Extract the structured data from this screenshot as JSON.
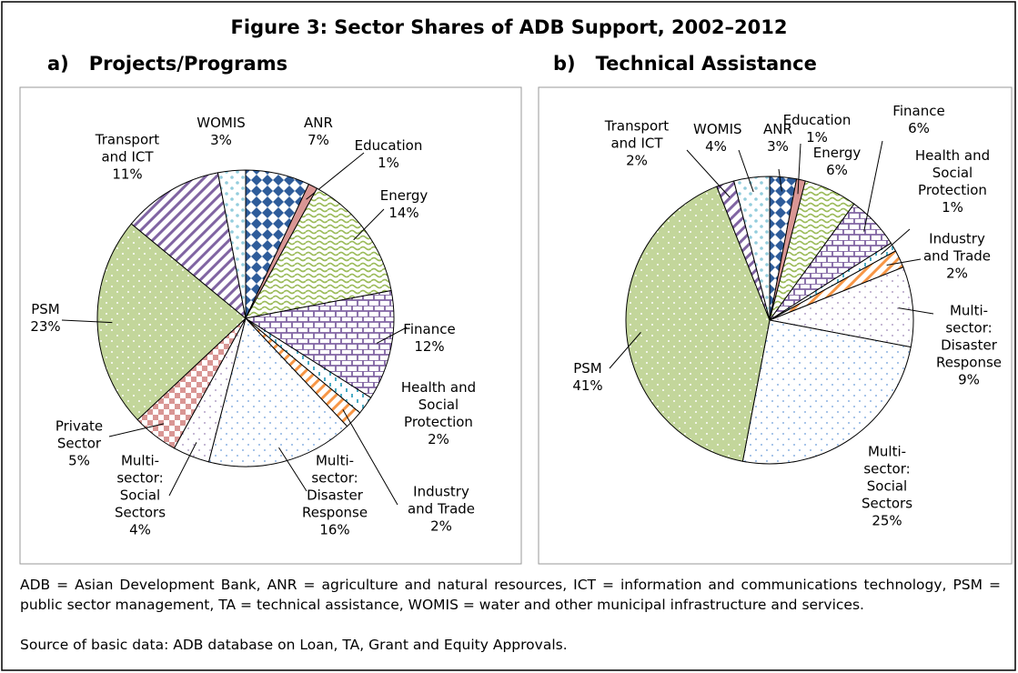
{
  "title": "Figure 3: Sector Shares of ADB Support, 2002–2012",
  "chart_data": [
    {
      "type": "pie",
      "title": "a)   Projects/Programs",
      "categories": [
        "ANR",
        "Education",
        "Energy",
        "Finance",
        "Health and Social Protection",
        "Industry and Trade",
        "Multi-sector: Disaster Response",
        "Multi-sector: Social Sectors",
        "Private Sector",
        "PSM",
        "Transport and ICT",
        "WOMIS"
      ],
      "values": [
        7,
        1,
        14,
        12,
        2,
        2,
        16,
        4,
        5,
        23,
        11,
        3
      ],
      "value_labels": [
        "7%",
        "1%",
        "14%",
        "12%",
        "2%",
        "2%",
        "16%",
        "4%",
        "5%",
        "23%",
        "11%",
        "3%"
      ],
      "colors": [
        "#2e5c9a",
        "#d99694",
        "#9bbb59",
        "#8064a2",
        "#4bacc6",
        "#f79646",
        "#8db3e2",
        "#b3a2c7",
        "#d99694",
        "#c3d69b",
        "#8064a2",
        "#93cddd"
      ]
    },
    {
      "type": "pie",
      "title": "b)   Technical Assistance",
      "categories": [
        "ANR",
        "Education",
        "Energy",
        "Finance",
        "Health and Social Protection",
        "Industry and Trade",
        "Multi-sector: Disaster Response",
        "Multi-sector: Social Sectors",
        "PSM",
        "Transport and ICT",
        "WOMIS"
      ],
      "values": [
        3,
        1,
        6,
        6,
        1,
        2,
        9,
        25,
        41,
        2,
        4
      ],
      "value_labels": [
        "3%",
        "1%",
        "6%",
        "6%",
        "1%",
        "2%",
        "9%",
        "25%",
        "41%",
        "2%",
        "4%"
      ],
      "colors": [
        "#2e5c9a",
        "#d99694",
        "#9bbb59",
        "#8064a2",
        "#4bacc6",
        "#f79646",
        "#b3a2c7",
        "#8db3e2",
        "#c3d69b",
        "#8064a2",
        "#93cddd"
      ]
    }
  ],
  "notes": [
    "ADB = Asian Development Bank, ANR = agriculture and natural resources, ICT = information and communications technology, PSM = public sector management, TA = technical assistance, WOMIS = water and other municipal infrastructure and services.",
    "Source of basic data: ADB database on Loan, TA, Grant and Equity Approvals."
  ]
}
